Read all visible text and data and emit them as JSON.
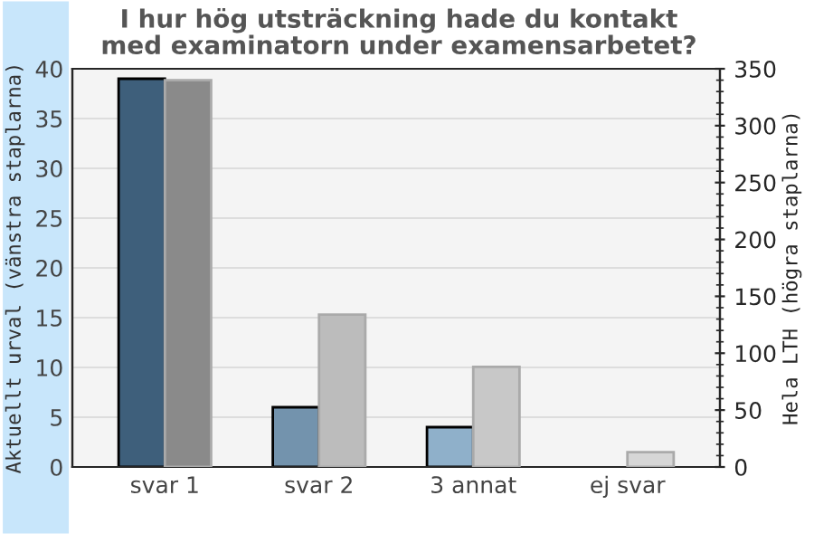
{
  "chart_data": {
    "type": "bar",
    "title": "I hur hög utsträckning hade du kontakt\nmed examinatorn under examensarbetet?",
    "categories": [
      "svar 1",
      "svar 2",
      "3 annat",
      "ej svar"
    ],
    "ylabel": "Aktuellt urval (vänstra staplarna)",
    "y2label": "Hela LTH (högra staplarna)",
    "series": [
      {
        "colors": [
          "#3e5f7b",
          "#7393ad",
          "#8fb0ca",
          null
        ],
        "values": [
          39,
          6,
          4,
          null
        ]
      },
      {
        "colors": [
          "#8a8a8a",
          "#bcbcbc",
          "#c8c8c8",
          "#d6d6d6"
        ],
        "values": [
          340,
          134,
          88,
          13
        ],
        "axis": "y2"
      }
    ],
    "ylim": [
      0,
      40
    ],
    "yticks": [
      0,
      5,
      10,
      15,
      20,
      25,
      30,
      35,
      40
    ],
    "y2lim": [
      0,
      350
    ],
    "y2ticks": [
      0,
      50,
      100,
      150,
      200,
      250,
      300,
      350
    ],
    "grid": "y",
    "legend": false
  }
}
